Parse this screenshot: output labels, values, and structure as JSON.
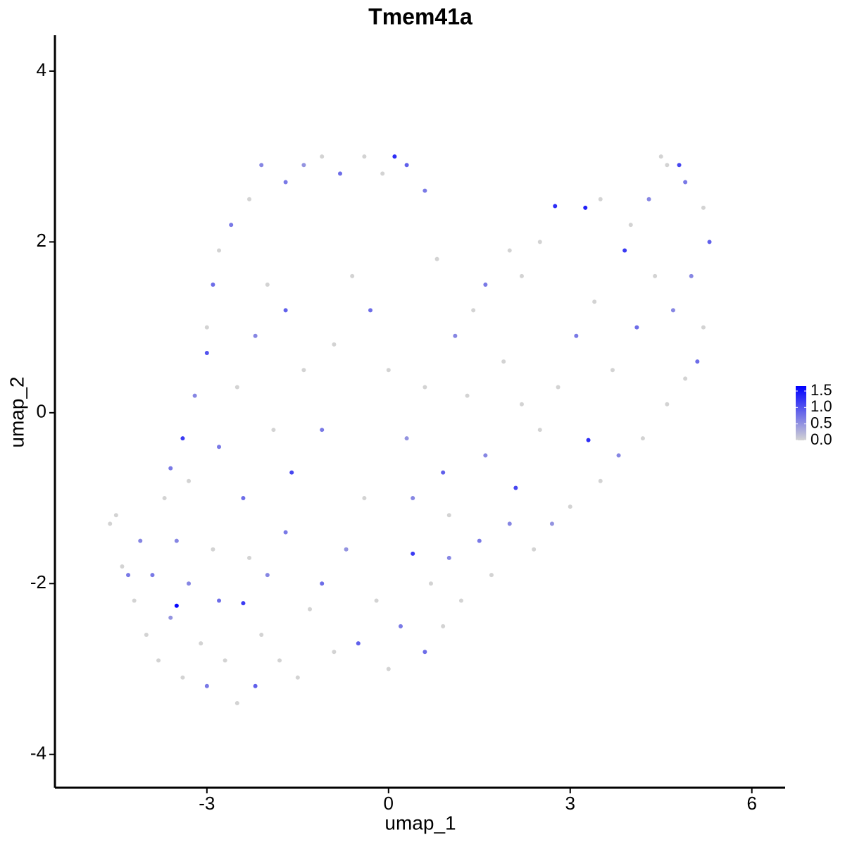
{
  "chart_data": {
    "type": "scatter",
    "title": "Tmem41a",
    "x_label": "umap_1",
    "y_label": "umap_2",
    "xlim": [
      -5.51,
      6.55
    ],
    "ylim": [
      -4.39,
      4.42
    ],
    "xticks": [
      -3,
      0,
      3,
      6
    ],
    "yticks": [
      -4,
      -2,
      0,
      2,
      4
    ],
    "low_color": "#d3d3d3",
    "high_color": "#0000ff",
    "clim": [
      0,
      1.65
    ],
    "cticks": [
      {
        "value": 0,
        "label": "0.0"
      },
      {
        "value": 0.5,
        "label": "0.5"
      },
      {
        "value": 1,
        "label": "1.0"
      },
      {
        "value": 1.5,
        "label": "1.5"
      }
    ],
    "x": [
      -4.6,
      -4.5,
      -4.4,
      -4.1,
      -4.2,
      -4.0,
      -3.9,
      -3.8,
      -3.6,
      -3.5,
      -3.4,
      -3.3,
      -3.1,
      -3.0,
      -2.9,
      -2.8,
      -2.7,
      -2.5,
      -2.4,
      -2.3,
      -2.2,
      -2.1,
      -2.0,
      -1.8,
      -1.5,
      -1.7,
      -1.3,
      -1.1,
      -0.9,
      -0.7,
      -0.5,
      -0.2,
      0.0,
      0.2,
      0.4,
      0.6,
      0.7,
      0.9,
      1.0,
      1.2,
      1.5,
      1.7,
      2.0,
      2.1,
      2.4,
      2.7,
      3.0,
      3.3,
      3.5,
      3.8,
      4.2,
      4.6,
      4.9,
      5.1,
      5.2,
      5.0,
      5.3,
      5.2,
      4.9,
      4.6,
      4.5,
      4.8,
      4.3,
      4.0,
      3.9,
      3.5,
      3.25,
      2.75,
      2.5,
      2.2,
      2.0,
      1.6,
      1.4,
      1.1,
      0.8,
      0.6,
      0.3,
      0.1,
      -0.1,
      -0.4,
      -0.8,
      -1.1,
      -1.4,
      -1.7,
      -2.1,
      -2.3,
      -2.6,
      -2.8,
      -2.9,
      -3.0,
      -3.0,
      -3.2,
      -3.4,
      -3.6,
      -3.7,
      -3.3,
      -2.8,
      -2.5,
      -2.2,
      -2.0,
      -1.7,
      -1.4,
      -1.1,
      -0.9,
      -0.6,
      -0.3,
      0,
      0.3,
      0.6,
      0.9,
      1.3,
      1.6,
      1.9,
      2.2,
      2.5,
      2.8,
      3.1,
      3.4,
      3.7,
      4.1,
      4.4,
      4.7,
      -1.6,
      -0.4,
      0.4,
      1.0,
      -2.4,
      -1.9,
      -3.5,
      -4.3
    ],
    "y": [
      -1.3,
      -1.2,
      -1.8,
      -1.5,
      -2.2,
      -2.6,
      -1.9,
      -2.9,
      -2.4,
      -2.26,
      -3.1,
      -2.0,
      -2.7,
      -3.2,
      -1.6,
      -2.2,
      -2.9,
      -3.4,
      -2.23,
      -1.7,
      -3.2,
      -2.6,
      -1.9,
      -2.9,
      -3.1,
      -1.4,
      -2.3,
      -2.0,
      -2.8,
      -1.6,
      -2.7,
      -2.2,
      -3.0,
      -2.5,
      -1.65,
      -2.8,
      -2.0,
      -2.5,
      -1.7,
      -2.2,
      -1.5,
      -1.9,
      -1.3,
      -0.88,
      -1.6,
      -1.3,
      -1.1,
      -0.32,
      -0.8,
      -0.5,
      -0.3,
      0.1,
      0.4,
      0.6,
      1.0,
      1.6,
      2.0,
      2.4,
      2.7,
      2.9,
      3.0,
      2.9,
      2.5,
      2.2,
      1.9,
      2.5,
      2.4,
      2.42,
      2.0,
      1.6,
      1.9,
      1.5,
      1.2,
      0.9,
      1.8,
      2.6,
      2.9,
      3.0,
      2.8,
      3.0,
      2.8,
      3.0,
      2.9,
      2.7,
      2.9,
      2.5,
      2.2,
      1.9,
      1.5,
      1.0,
      0.7,
      0.2,
      -0.3,
      -0.65,
      -1.0,
      -0.8,
      -0.4,
      0.3,
      0.9,
      1.5,
      1.2,
      0.5,
      -0.2,
      0.8,
      1.6,
      1.2,
      0.5,
      -0.3,
      0.3,
      -0.7,
      0.2,
      -0.5,
      0.6,
      0.1,
      -0.2,
      0.3,
      0.9,
      1.3,
      0.5,
      1.0,
      1.6,
      1.2,
      -0.7,
      -1.0,
      -1.0,
      -1.2,
      -1.0,
      -0.2,
      -1.5,
      -1.9
    ],
    "values": [
      0,
      0,
      0,
      0.6,
      0,
      0,
      0.7,
      0,
      0.5,
      1.6,
      0,
      0.6,
      0,
      0.7,
      0,
      0.8,
      0,
      0,
      1.2,
      0,
      0.9,
      0,
      0.6,
      0,
      0,
      0.7,
      0,
      0.8,
      0,
      0.5,
      0.9,
      0,
      0,
      0.7,
      1.2,
      0.8,
      0,
      0,
      0.6,
      0,
      0.7,
      0,
      0.6,
      1.1,
      0,
      0.5,
      0,
      1.3,
      0,
      0.6,
      0,
      0,
      0,
      0.8,
      0,
      0.6,
      0.9,
      0,
      0.7,
      0,
      0,
      1.1,
      0.6,
      0,
      1.2,
      0,
      1.4,
      1.3,
      0,
      0,
      0,
      0.7,
      0,
      0.6,
      0,
      0.7,
      0.9,
      1.3,
      0,
      0,
      0.8,
      0,
      0.5,
      0.7,
      0.6,
      0,
      0.7,
      0,
      0.8,
      0,
      1.0,
      0.6,
      1.2,
      0.7,
      0,
      0,
      0.7,
      0,
      0.6,
      0,
      0.9,
      0,
      0.7,
      0,
      0,
      0.8,
      0,
      0.5,
      0,
      0.9,
      0,
      0.6,
      0,
      0,
      0,
      0,
      0.7,
      0,
      0,
      0.8,
      0,
      0.6,
      1.1,
      0,
      0.6,
      0,
      0.8,
      0,
      0.6,
      0.7
    ]
  }
}
